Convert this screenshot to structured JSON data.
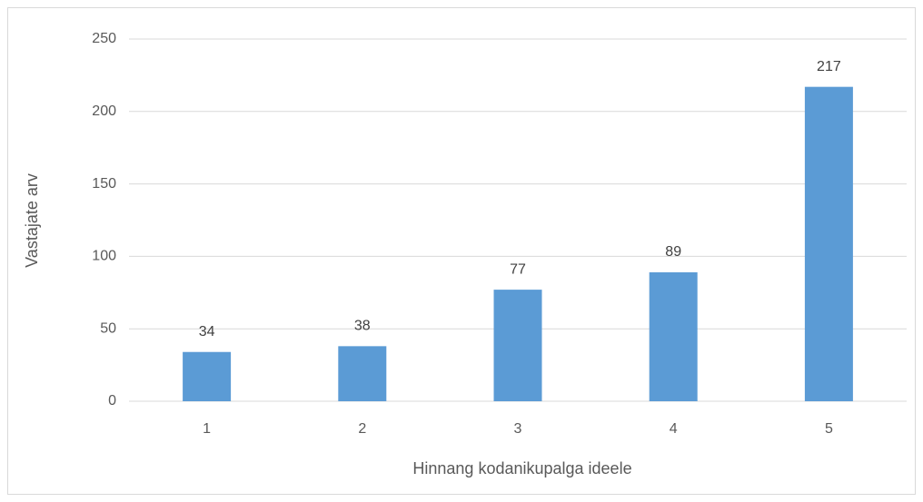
{
  "chart_data": {
    "type": "bar",
    "x_label": "Hinnang kodanikupalga ideele",
    "y_label": "Vastajate arv",
    "categories": [
      "1",
      "2",
      "3",
      "4",
      "5"
    ],
    "values": [
      34,
      38,
      77,
      89,
      217
    ],
    "color": "#5b9bd5",
    "ylim": [
      0,
      250
    ],
    "yticks": [
      0,
      50,
      100,
      150,
      200,
      250
    ],
    "grid": true
  }
}
